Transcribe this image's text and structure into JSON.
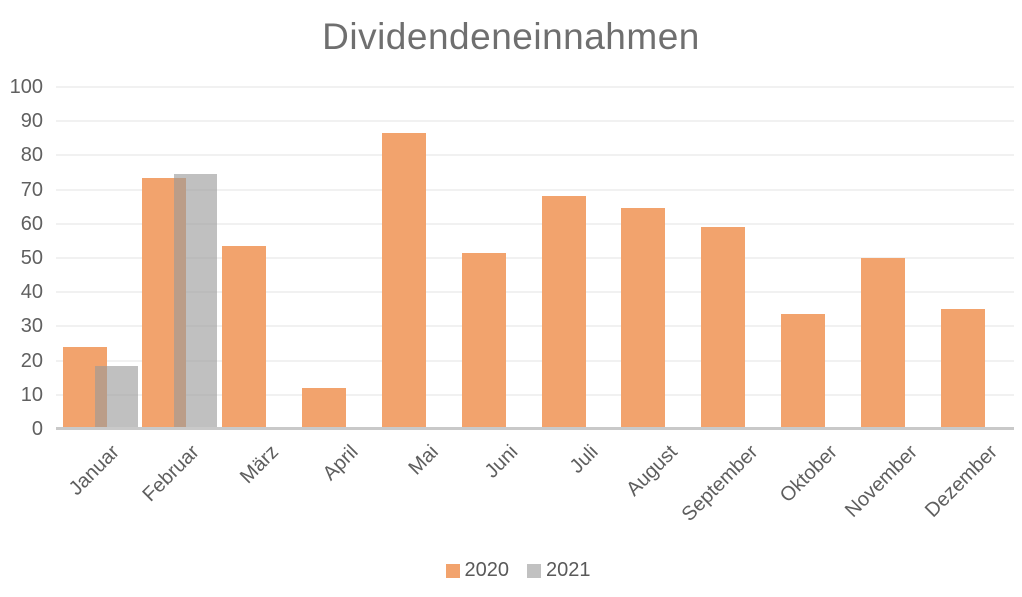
{
  "chart_data": {
    "type": "bar",
    "title": "Dividendeneinnahmen",
    "categories": [
      "Januar",
      "Februar",
      "März",
      "April",
      "Mai",
      "Juni",
      "Juli",
      "August",
      "September",
      "Oktober",
      "November",
      "Dezember"
    ],
    "series": [
      {
        "name": "2020",
        "color": "#F2A36D",
        "fill": "#F2A36D",
        "values": [
          24,
          73.5,
          53.5,
          12,
          86.5,
          51.5,
          68,
          64.5,
          59,
          33.5,
          50,
          35
        ]
      },
      {
        "name": "2021",
        "color": "#C1C1C1",
        "fill": "rgba(154,154,154,0.62)",
        "values": [
          18.5,
          74.5,
          null,
          null,
          null,
          null,
          null,
          null,
          null,
          null,
          null,
          null
        ]
      }
    ],
    "xlabel": "",
    "ylabel": "",
    "ylim": [
      0,
      100
    ],
    "yticks": [
      0,
      10,
      20,
      30,
      40,
      50,
      60,
      70,
      80,
      90,
      100
    ],
    "grid": true,
    "legend_position": "bottom",
    "colors": {
      "background": "#ffffff",
      "gridline": "#f1f1f1",
      "axis_line": "#c9c9c9",
      "title_text": "#6f6f6f",
      "tick_label_text": "#606060",
      "legend_text": "#595959"
    }
  }
}
